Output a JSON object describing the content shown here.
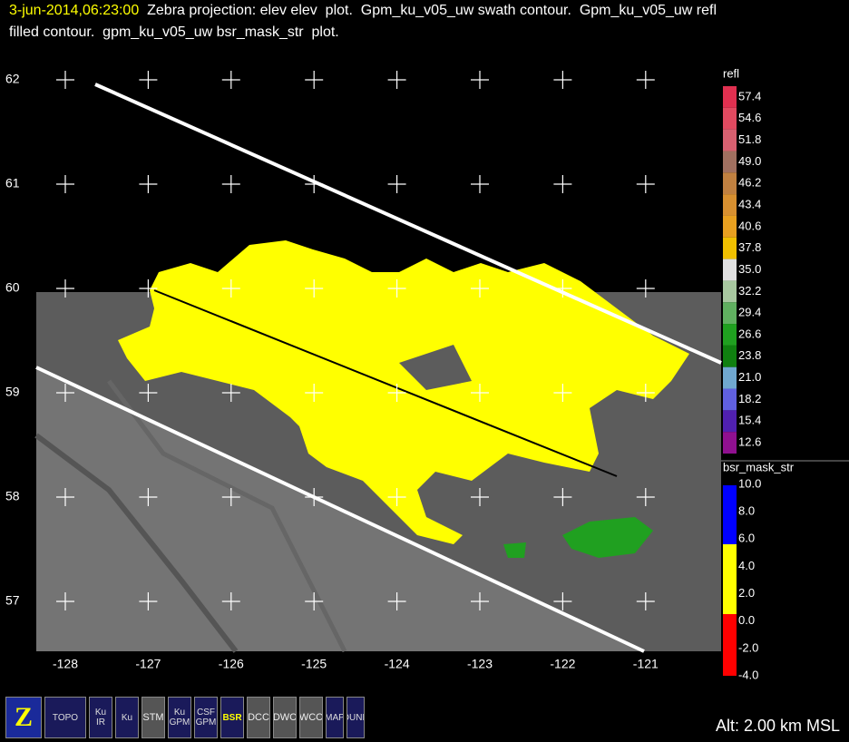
{
  "header": {
    "time": "3-jun-2014,06:23:00",
    "line1": "Zebra projection: elev elev  plot.  Gpm_ku_v05_uw swath contour.  Gpm_ku_v05_uw refl",
    "line2": "filled contour.  gpm_ku_v05_uw bsr_mask_str  plot."
  },
  "map": {
    "lat_labels": [
      "62",
      "61",
      "60",
      "59",
      "58",
      "57"
    ],
    "lon_labels": [
      "-128",
      "-127",
      "-126",
      "-125",
      "-124",
      "-123",
      "-122",
      "-121"
    ]
  },
  "legends": [
    {
      "title": "refl",
      "labels": [
        "57.4",
        "54.6",
        "51.8",
        "49.0",
        "46.2",
        "43.4",
        "40.6",
        "37.8",
        "35.0",
        "32.2",
        "29.4",
        "26.6",
        "23.8",
        "21.0",
        "18.2",
        "15.4",
        "12.6"
      ],
      "colors": [
        "#e03050",
        "#e04a60",
        "#d86070",
        "#a07060",
        "#c08040",
        "#d89030",
        "#e8a020",
        "#f0c000",
        "#e0e0e0",
        "#a8c8a0",
        "#60b060",
        "#20a020",
        "#108010",
        "#70a8d0",
        "#6060e0",
        "#5020b0",
        "#901090"
      ]
    },
    {
      "title": "bsr_mask_str",
      "labels": [
        "10.0",
        "8.0",
        "6.0",
        "4.0",
        "2.0",
        "0.0",
        "-2.0",
        "-4.0"
      ]
    }
  ],
  "toolbar": [
    "Z",
    "TOPO",
    "Ku IR",
    "Ku",
    "STM",
    "Ku GPM",
    "CSF GPM",
    "BSR",
    "DCC",
    "DWC",
    "WCC",
    "MAP",
    "BOUNDS"
  ],
  "status": "Alt: 2.00 km MSL"
}
